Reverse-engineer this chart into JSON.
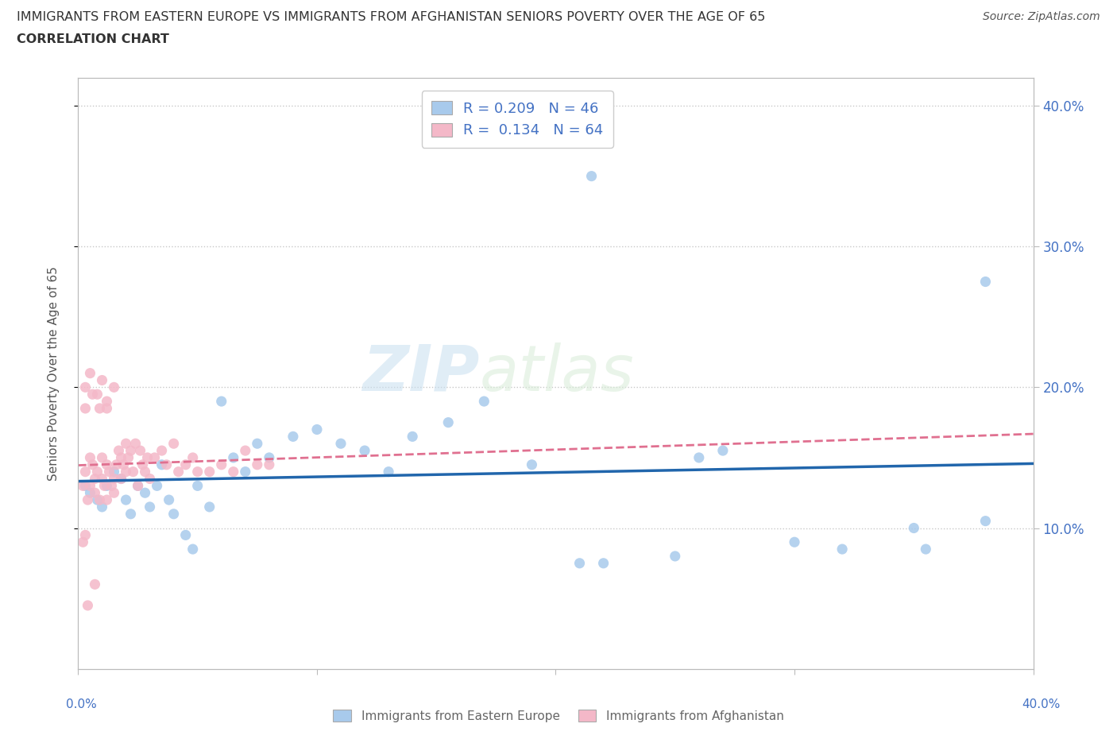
{
  "title_line1": "IMMIGRANTS FROM EASTERN EUROPE VS IMMIGRANTS FROM AFGHANISTAN SENIORS POVERTY OVER THE AGE OF 65",
  "title_line2": "CORRELATION CHART",
  "source_text": "Source: ZipAtlas.com",
  "ylabel": "Seniors Poverty Over the Age of 65",
  "x_min": 0.0,
  "x_max": 0.4,
  "y_min": 0.0,
  "y_max": 0.42,
  "y_ticks": [
    0.1,
    0.2,
    0.3,
    0.4
  ],
  "x_ticks_minor": [
    0.1,
    0.2,
    0.3
  ],
  "color_blue": "#a8caec",
  "color_pink": "#f4b8c8",
  "line_blue": "#2166ac",
  "line_pink": "#e07090",
  "background": "#ffffff",
  "blue_scatter_x": [
    0.003,
    0.005,
    0.008,
    0.01,
    0.012,
    0.015,
    0.018,
    0.02,
    0.022,
    0.025,
    0.028,
    0.03,
    0.033,
    0.035,
    0.038,
    0.04,
    0.045,
    0.048,
    0.05,
    0.055,
    0.06,
    0.065,
    0.07,
    0.075,
    0.08,
    0.09,
    0.1,
    0.11,
    0.12,
    0.13,
    0.14,
    0.155,
    0.17,
    0.19,
    0.21,
    0.22,
    0.25,
    0.26,
    0.27,
    0.3,
    0.32,
    0.35,
    0.355,
    0.38,
    0.215,
    0.38
  ],
  "blue_scatter_y": [
    0.13,
    0.125,
    0.12,
    0.115,
    0.13,
    0.14,
    0.135,
    0.12,
    0.11,
    0.13,
    0.125,
    0.115,
    0.13,
    0.145,
    0.12,
    0.11,
    0.095,
    0.085,
    0.13,
    0.115,
    0.19,
    0.15,
    0.14,
    0.16,
    0.15,
    0.165,
    0.17,
    0.16,
    0.155,
    0.14,
    0.165,
    0.175,
    0.19,
    0.145,
    0.075,
    0.075,
    0.08,
    0.15,
    0.155,
    0.09,
    0.085,
    0.1,
    0.085,
    0.105,
    0.35,
    0.275
  ],
  "pink_scatter_x": [
    0.002,
    0.003,
    0.004,
    0.005,
    0.005,
    0.006,
    0.007,
    0.007,
    0.008,
    0.009,
    0.01,
    0.01,
    0.011,
    0.012,
    0.012,
    0.013,
    0.014,
    0.015,
    0.015,
    0.016,
    0.017,
    0.018,
    0.018,
    0.019,
    0.02,
    0.02,
    0.021,
    0.022,
    0.023,
    0.024,
    0.025,
    0.026,
    0.027,
    0.028,
    0.029,
    0.03,
    0.032,
    0.035,
    0.037,
    0.04,
    0.042,
    0.045,
    0.048,
    0.05,
    0.055,
    0.06,
    0.065,
    0.07,
    0.075,
    0.08,
    0.003,
    0.005,
    0.008,
    0.01,
    0.012,
    0.015,
    0.003,
    0.006,
    0.009,
    0.012,
    0.004,
    0.007,
    0.002,
    0.003
  ],
  "pink_scatter_y": [
    0.13,
    0.14,
    0.12,
    0.15,
    0.13,
    0.145,
    0.135,
    0.125,
    0.14,
    0.12,
    0.135,
    0.15,
    0.13,
    0.145,
    0.12,
    0.14,
    0.13,
    0.135,
    0.125,
    0.145,
    0.155,
    0.15,
    0.135,
    0.145,
    0.16,
    0.14,
    0.15,
    0.155,
    0.14,
    0.16,
    0.13,
    0.155,
    0.145,
    0.14,
    0.15,
    0.135,
    0.15,
    0.155,
    0.145,
    0.16,
    0.14,
    0.145,
    0.15,
    0.14,
    0.14,
    0.145,
    0.14,
    0.155,
    0.145,
    0.145,
    0.2,
    0.21,
    0.195,
    0.205,
    0.19,
    0.2,
    0.185,
    0.195,
    0.185,
    0.185,
    0.045,
    0.06,
    0.09,
    0.095
  ]
}
